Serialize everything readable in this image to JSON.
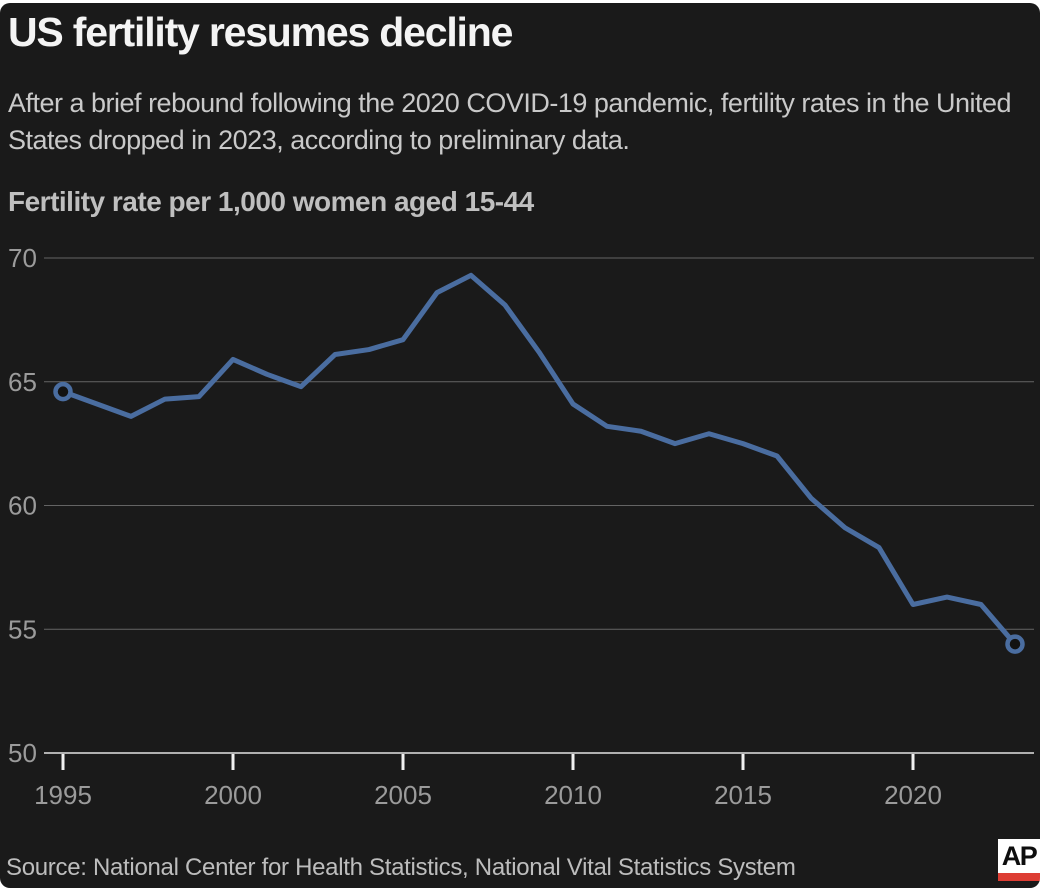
{
  "header": {
    "title": "US fertility resumes decline",
    "subtitle": "After a brief rebound following the 2020 COVID-19 pandemic, fertility rates in the United States dropped in 2023, according to preliminary data.",
    "chart_label": "Fertility rate per 1,000 women aged 15-44"
  },
  "chart_data": {
    "type": "line",
    "title": "Fertility rate per 1,000 women aged 15-44",
    "series_name": "US fertility rate per 1,000 women aged 15-44",
    "x": [
      1995,
      1996,
      1997,
      1998,
      1999,
      2000,
      2001,
      2002,
      2003,
      2004,
      2005,
      2006,
      2007,
      2008,
      2009,
      2010,
      2011,
      2012,
      2013,
      2014,
      2015,
      2016,
      2017,
      2018,
      2019,
      2020,
      2021,
      2022,
      2023
    ],
    "values": [
      64.6,
      64.1,
      63.6,
      64.3,
      64.4,
      65.9,
      65.3,
      64.8,
      66.1,
      66.3,
      66.7,
      68.6,
      69.3,
      68.1,
      66.2,
      64.1,
      63.2,
      63.0,
      62.5,
      62.9,
      62.5,
      62.0,
      60.3,
      59.1,
      58.3,
      56.0,
      56.3,
      56.0,
      54.4
    ],
    "xlabel": "",
    "ylabel": "",
    "ylim": [
      50,
      70
    ],
    "yticks": [
      50,
      55,
      60,
      65,
      70
    ],
    "xticks": [
      1995,
      2000,
      2005,
      2010,
      2015,
      2020
    ],
    "grid": "horizontal",
    "legend": "none",
    "annotations": "open circle markers on first (1995) and last (2023) data points",
    "colors": {
      "line": "#4a6da0",
      "marker_fill": "#121212",
      "gridline": "#646464",
      "baseline_axis": "#b0b0b0",
      "tick_mark": "#f0f0f0",
      "tick_label": "#9b9b9b",
      "background": "#1a1a1a"
    }
  },
  "footer": {
    "source": "Source: National Center for Health Statistics, National Vital Statistics System",
    "logo_text": "AP",
    "logo_colors": {
      "box": "#ffffff",
      "text": "#0d0d0d",
      "bar": "#dd3d33"
    }
  }
}
